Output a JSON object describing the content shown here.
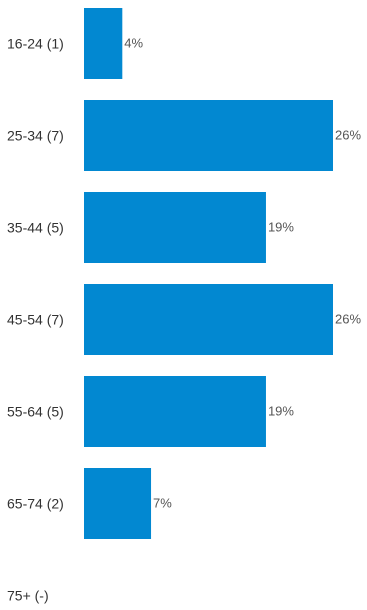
{
  "chart_data": {
    "type": "bar",
    "orientation": "horizontal",
    "categories": [
      "16-24 (1)",
      "25-34 (7)",
      "35-44 (5)",
      "45-54 (7)",
      "55-64 (5)",
      "65-74 (2)",
      "75+ (-)"
    ],
    "values": [
      4,
      26,
      19,
      26,
      19,
      7,
      null
    ],
    "value_labels": [
      "4%",
      "26%",
      "19%",
      "26%",
      "19%",
      "7%",
      ""
    ],
    "xlim": [
      0,
      26
    ],
    "grid": false,
    "title": "",
    "xlabel": "",
    "ylabel": "",
    "colors": {
      "bar": "#0288d1",
      "category_text": "#333333",
      "value_text": "#555555"
    }
  }
}
